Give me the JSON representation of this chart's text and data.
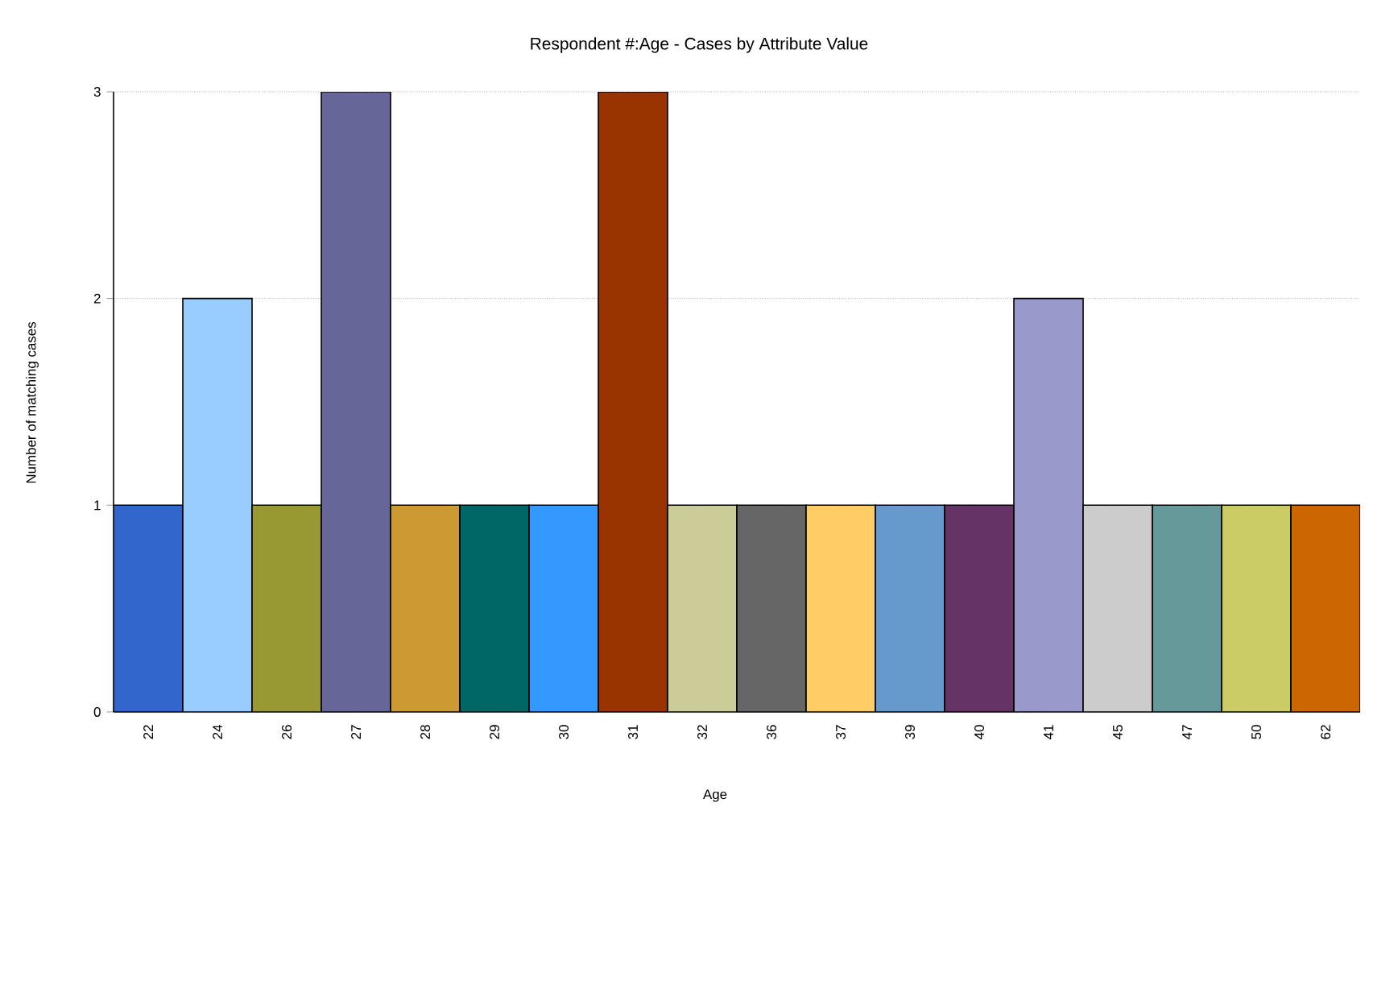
{
  "chart_data": {
    "type": "bar",
    "title": "Respondent  #:Age - Cases by Attribute Value",
    "xlabel": "Age",
    "ylabel": "Number of matching cases",
    "categories": [
      "22",
      "24",
      "26",
      "27",
      "28",
      "29",
      "30",
      "31",
      "32",
      "36",
      "37",
      "39",
      "40",
      "41",
      "45",
      "47",
      "50",
      "62"
    ],
    "values": [
      1,
      2,
      1,
      3,
      1,
      1,
      1,
      3,
      1,
      1,
      1,
      1,
      1,
      2,
      1,
      1,
      1,
      1
    ],
    "colors": [
      "#3366cc",
      "#99ccff",
      "#999933",
      "#666699",
      "#cc9933",
      "#006666",
      "#3399ff",
      "#993300",
      "#cccc99",
      "#666666",
      "#ffcc66",
      "#6699cc",
      "#663366",
      "#9999cc",
      "#cccccc",
      "#669999",
      "#cccc66",
      "#cc6600"
    ],
    "ylim": [
      0,
      3
    ],
    "yticks": [
      0,
      1,
      2,
      3
    ],
    "grid": "y"
  }
}
